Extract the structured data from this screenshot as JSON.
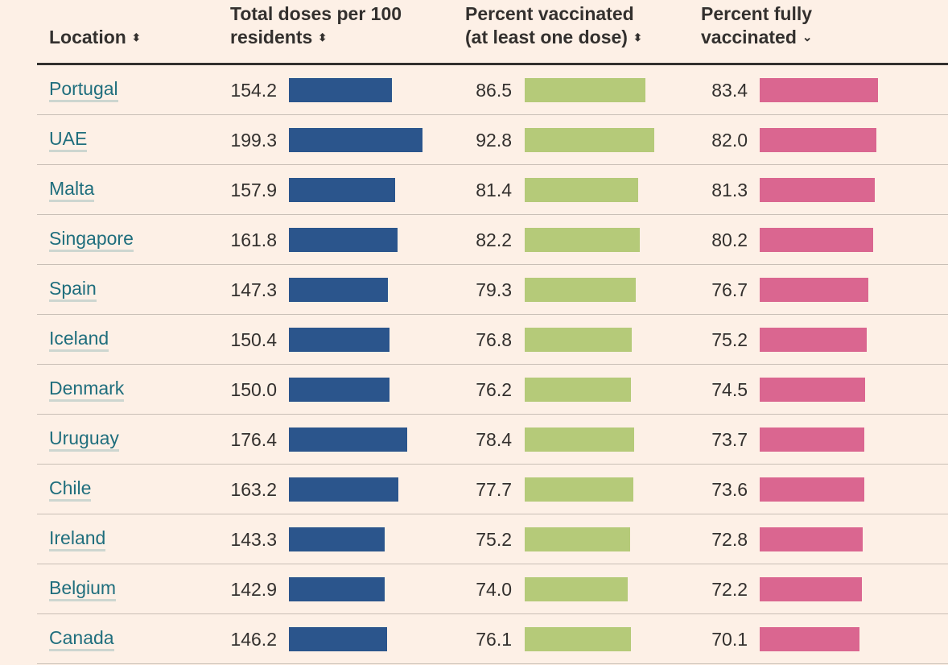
{
  "colors": {
    "background": "#fdf0e6",
    "doses_bar": "#2b558c",
    "one_dose_bar": "#b5ca79",
    "fully_bar": "#da6690",
    "link": "#1f6e7d"
  },
  "header": {
    "location": "Location",
    "doses_line1": "Total doses per 100",
    "doses_line2": "residents",
    "one_line1": "Percent vaccinated",
    "one_line2": "(at least one dose)",
    "fully_line1": "Percent fully",
    "fully_line2": "vaccinated",
    "sort_icon": "⬍",
    "sort_active_icon": "⌄"
  },
  "chart_data": {
    "type": "table",
    "columns": [
      "Location",
      "Total doses per 100 residents",
      "Percent vaccinated (at least one dose)",
      "Percent fully vaccinated"
    ],
    "sorted_by": "Percent fully vaccinated",
    "sort_order": "descending",
    "rows": [
      {
        "location": "Portugal",
        "doses": "154.2",
        "one_dose": "86.5",
        "fully": "83.4"
      },
      {
        "location": "UAE",
        "doses": "199.3",
        "one_dose": "92.8",
        "fully": "82.0"
      },
      {
        "location": "Malta",
        "doses": "157.9",
        "one_dose": "81.4",
        "fully": "81.3"
      },
      {
        "location": "Singapore",
        "doses": "161.8",
        "one_dose": "82.2",
        "fully": "80.2"
      },
      {
        "location": "Spain",
        "doses": "147.3",
        "one_dose": "79.3",
        "fully": "76.7"
      },
      {
        "location": "Iceland",
        "doses": "150.4",
        "one_dose": "76.8",
        "fully": "75.2"
      },
      {
        "location": "Denmark",
        "doses": "150.0",
        "one_dose": "76.2",
        "fully": "74.5"
      },
      {
        "location": "Uruguay",
        "doses": "176.4",
        "one_dose": "78.4",
        "fully": "73.7"
      },
      {
        "location": "Chile",
        "doses": "163.2",
        "one_dose": "77.7",
        "fully": "73.6"
      },
      {
        "location": "Ireland",
        "doses": "143.3",
        "one_dose": "75.2",
        "fully": "72.8"
      },
      {
        "location": "Belgium",
        "doses": "142.9",
        "one_dose": "74.0",
        "fully": "72.2"
      },
      {
        "location": "Canada",
        "doses": "146.2",
        "one_dose": "76.1",
        "fully": "70.1"
      }
    ]
  }
}
